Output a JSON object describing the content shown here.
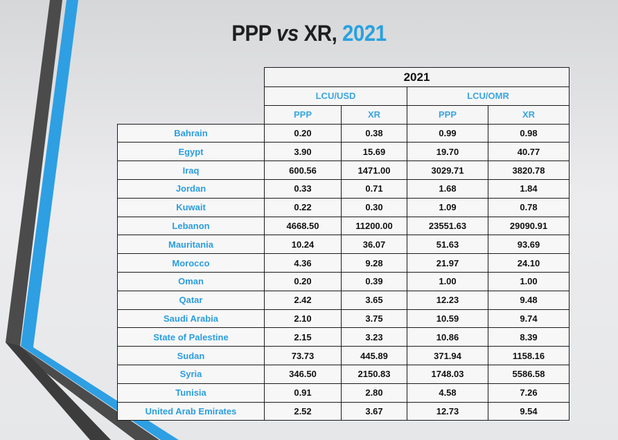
{
  "title": {
    "part1": "PPP",
    "part2": "vs",
    "part3": "XR,",
    "year": "2021"
  },
  "colors": {
    "accent": "#28a1e0",
    "country_text": "#2b9de0",
    "stripe_dark": "#4a4a4a",
    "stripe_blue": "#2e9fe3"
  },
  "table": {
    "year": "2021",
    "groups": [
      "LCU/USD",
      "LCU/OMR"
    ],
    "subheaders": [
      "PPP",
      "XR",
      "PPP",
      "XR"
    ],
    "rows": [
      {
        "country": "Bahrain",
        "values": [
          "0.20",
          "0.38",
          "0.99",
          "0.98"
        ]
      },
      {
        "country": "Egypt",
        "values": [
          "3.90",
          "15.69",
          "19.70",
          "40.77"
        ]
      },
      {
        "country": "Iraq",
        "values": [
          "600.56",
          "1471.00",
          "3029.71",
          "3820.78"
        ]
      },
      {
        "country": "Jordan",
        "values": [
          "0.33",
          "0.71",
          "1.68",
          "1.84"
        ]
      },
      {
        "country": "Kuwait",
        "values": [
          "0.22",
          "0.30",
          "1.09",
          "0.78"
        ]
      },
      {
        "country": "Lebanon",
        "values": [
          "4668.50",
          "11200.00",
          "23551.63",
          "29090.91"
        ]
      },
      {
        "country": "Mauritania",
        "values": [
          "10.24",
          "36.07",
          "51.63",
          "93.69"
        ]
      },
      {
        "country": "Morocco",
        "values": [
          "4.36",
          "9.28",
          "21.97",
          "24.10"
        ]
      },
      {
        "country": "Oman",
        "values": [
          "0.20",
          "0.39",
          "1.00",
          "1.00"
        ]
      },
      {
        "country": "Qatar",
        "values": [
          "2.42",
          "3.65",
          "12.23",
          "9.48"
        ]
      },
      {
        "country": "Saudi Arabia",
        "values": [
          "2.10",
          "3.75",
          "10.59",
          "9.74"
        ]
      },
      {
        "country": "State of Palestine",
        "values": [
          "2.15",
          "3.23",
          "10.86",
          "8.39"
        ]
      },
      {
        "country": "Sudan",
        "values": [
          "73.73",
          "445.89",
          "371.94",
          "1158.16"
        ]
      },
      {
        "country": "Syria",
        "values": [
          "346.50",
          "2150.83",
          "1748.03",
          "5586.58"
        ]
      },
      {
        "country": "Tunisia",
        "values": [
          "0.91",
          "2.80",
          "4.58",
          "7.26"
        ]
      },
      {
        "country": "United Arab Emirates",
        "values": [
          "2.52",
          "3.67",
          "12.73",
          "9.54"
        ]
      }
    ]
  }
}
